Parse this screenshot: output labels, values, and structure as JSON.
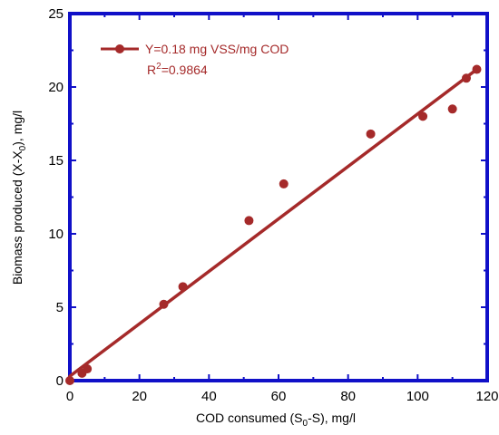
{
  "chart_data": {
    "type": "scatter",
    "x_label": "COD consumed (S",
    "x_label_sub": "0",
    "x_label_tail": "-S), mg/l",
    "y_label": "Biomass produced (X-X",
    "y_label_sub": "0",
    "y_label_tail": "), mg/l",
    "xlim": [
      0,
      120
    ],
    "ylim": [
      0,
      25
    ],
    "x_ticks": [
      "0",
      "20",
      "40",
      "60",
      "80",
      "100",
      "120"
    ],
    "y_ticks": [
      "0",
      "5",
      "10",
      "15",
      "20",
      "25"
    ],
    "grid": false,
    "legend_position": "top-left",
    "series": [
      {
        "name": "Y=0.18 mg VSS/mg COD",
        "color": "#A52A2A",
        "marker": "circle",
        "x": [
          0,
          3.5,
          5,
          27,
          32.5,
          51.5,
          61.5,
          86.5,
          101.5,
          110,
          114,
          117
        ],
        "y": [
          0,
          0.5,
          0.8,
          5.2,
          6.4,
          10.9,
          13.4,
          16.8,
          18.0,
          18.5,
          20.6,
          21.2
        ]
      }
    ],
    "fit_line": {
      "x": [
        0,
        117
      ],
      "y": [
        0.3,
        21.2
      ]
    },
    "annotation_r": "R",
    "annotation_sup": "2",
    "annotation_value": "=0.9864",
    "frame_color": "#1010C8"
  }
}
